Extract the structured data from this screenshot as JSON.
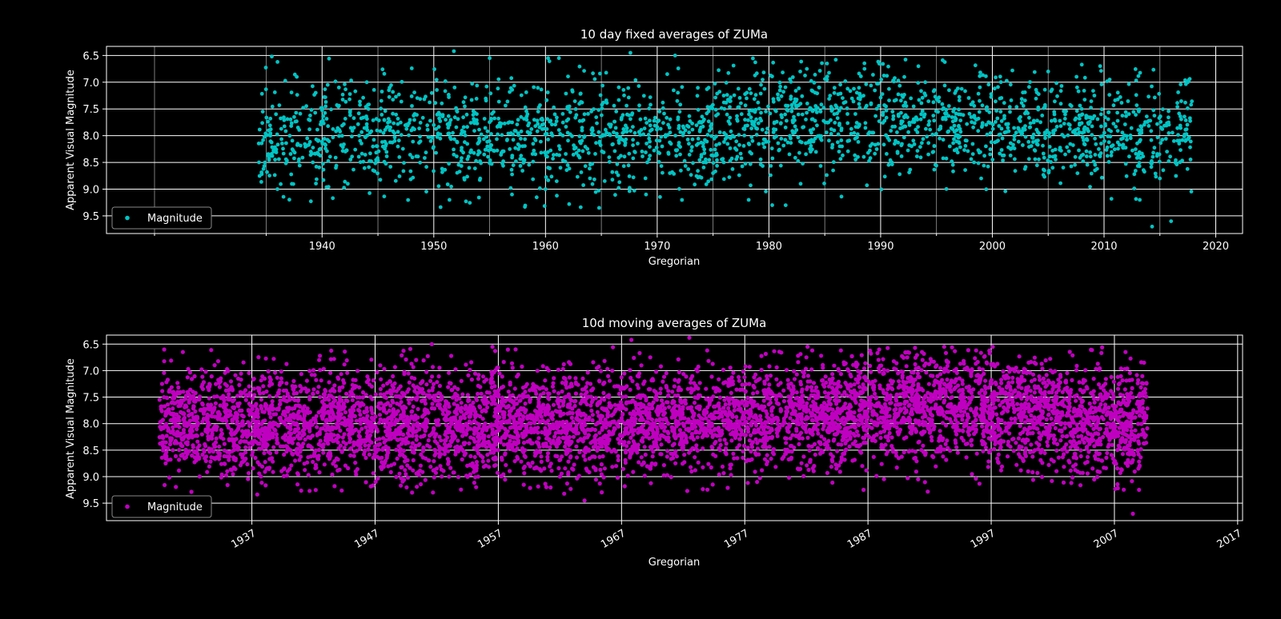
{
  "chart_data": [
    {
      "type": "scatter",
      "title": "10 day fixed averages of ZUMa",
      "xlabel": "Gregorian",
      "ylabel": "Apparent Visual Magnitude",
      "xlim": [
        1920.7,
        2022.4
      ],
      "ylim": [
        9.83,
        6.33
      ],
      "y_inverted": true,
      "grid": true,
      "legend_loc": "lower-left",
      "x_ticks": [
        1940,
        1950,
        1960,
        1970,
        1980,
        1990,
        2000,
        2010,
        2020
      ],
      "x_tick_labels": [
        "1940",
        "1950",
        "1960",
        "1970",
        "1980",
        "1990",
        "2000",
        "2010",
        "2020"
      ],
      "y_ticks": [
        6.5,
        7.0,
        7.5,
        8.0,
        8.5,
        9.0,
        9.5
      ],
      "y_tick_labels": [
        "6.5",
        "7.0",
        "7.5",
        "8.0",
        "8.5",
        "9.0",
        "9.5"
      ],
      "series": [
        {
          "name": "Magnitude",
          "color": "#00c4c4",
          "sampling": "10-day fixed bins",
          "x_range": [
            1934.3,
            2017.9
          ],
          "points": [
            [
              1934.6,
              8.72
            ],
            [
              1935.2,
              7.9
            ],
            [
              1935.5,
              6.52
            ],
            [
              1936.0,
              9.0
            ],
            [
              1937.5,
              7.65
            ],
            [
              1939.0,
              8.3
            ],
            [
              1940.5,
              7.05
            ],
            [
              1942.3,
              8.9
            ],
            [
              1944.0,
              7.0
            ],
            [
              1945.5,
              7.95
            ],
            [
              1946.5,
              8.1
            ],
            [
              1948.0,
              7.9
            ],
            [
              1950.0,
              7.8
            ],
            [
              1951.4,
              9.2
            ],
            [
              1951.8,
              6.42
            ],
            [
              1955.0,
              6.55
            ],
            [
              1957.0,
              9.1
            ],
            [
              1960.0,
              9.0
            ],
            [
              1961.2,
              6.55
            ],
            [
              1964.8,
              9.35
            ],
            [
              1967.6,
              6.45
            ],
            [
              1969.0,
              9.1
            ],
            [
              1971.6,
              6.5
            ],
            [
              1975.0,
              8.7
            ],
            [
              1978.0,
              7.3
            ],
            [
              1981.5,
              9.3
            ],
            [
              1982.8,
              6.8
            ],
            [
              1985.2,
              6.65
            ],
            [
              1988.0,
              7.3
            ],
            [
              1991.0,
              8.5
            ],
            [
              1994.0,
              7.0
            ],
            [
              1997.0,
              7.6
            ],
            [
              1999.0,
              8.8
            ],
            [
              2002.0,
              8.0
            ],
            [
              2005.0,
              6.8
            ],
            [
              2008.0,
              7.5
            ],
            [
              2010.5,
              6.95
            ],
            [
              2013.2,
              9.2
            ],
            [
              2014.3,
              9.7
            ],
            [
              2015.0,
              8.8
            ],
            [
              2016.0,
              9.6
            ],
            [
              2017.5,
              7.0
            ]
          ]
        }
      ]
    },
    {
      "type": "scatter",
      "title": "10d moving averages of ZUMa",
      "xlabel": "Gregorian",
      "ylabel": "Apparent Visual Magnitude",
      "xlim": [
        1925.2,
        2017.4
      ],
      "ylim": [
        9.83,
        6.33
      ],
      "y_inverted": true,
      "grid": true,
      "legend_loc": "lower-left",
      "x_ticks": [
        1937,
        1947,
        1957,
        1967,
        1977,
        1987,
        1997,
        2007,
        2017
      ],
      "x_tick_labels": [
        "1937",
        "1947",
        "1957",
        "1967",
        "1977",
        "1987",
        "1997",
        "2007",
        "2017"
      ],
      "y_ticks": [
        6.5,
        7.0,
        7.5,
        8.0,
        8.5,
        9.0,
        9.5
      ],
      "y_tick_labels": [
        "6.5",
        "7.0",
        "7.5",
        "8.0",
        "8.5",
        "9.0",
        "9.5"
      ],
      "series": [
        {
          "name": "Magnitude",
          "color": "#c000c0",
          "sampling": "10-day moving average",
          "x_range": [
            1929.5,
            2009.7
          ],
          "points": [
            [
              1930.0,
              8.75
            ],
            [
              1931.4,
              6.65
            ],
            [
              1935.0,
              8.9
            ],
            [
              1940.0,
              7.9
            ],
            [
              1945.0,
              8.6
            ],
            [
              1948.0,
              8.2
            ],
            [
              1950.0,
              9.3
            ],
            [
              1951.6,
              6.5
            ],
            [
              1955.2,
              9.2
            ],
            [
              1958.4,
              6.6
            ],
            [
              1962.0,
              9.0
            ],
            [
              1964.0,
              9.45
            ],
            [
              1967.8,
              6.42
            ],
            [
              1972.5,
              6.38
            ],
            [
              1975.0,
              8.5
            ],
            [
              1978.0,
              9.1
            ],
            [
              1982.0,
              6.75
            ],
            [
              1984.8,
              6.62
            ],
            [
              1989.5,
              7.2
            ],
            [
              1994.0,
              7.0
            ],
            [
              1997.0,
              8.3
            ],
            [
              2000.0,
              8.9
            ],
            [
              2003.0,
              8.0
            ],
            [
              2006.0,
              8.7
            ],
            [
              2007.9,
              6.65
            ],
            [
              2008.5,
              9.7
            ],
            [
              2009.4,
              6.85
            ]
          ]
        }
      ]
    }
  ]
}
